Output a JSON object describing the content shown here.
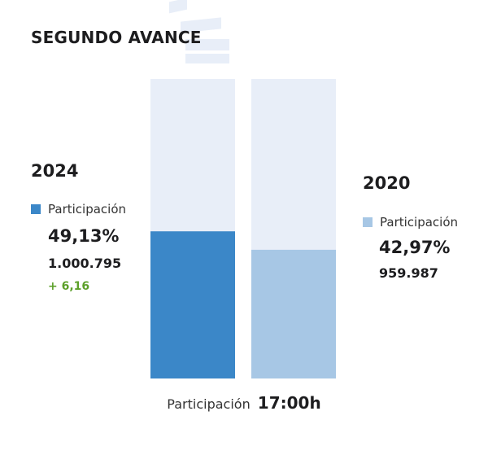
{
  "title": "SEGUNDO AVANCE",
  "colors": {
    "track": "#e8eef8",
    "bar_2024": "#3b87c8",
    "bar_2020": "#a7c7e5",
    "diff_positive": "#5da02a"
  },
  "chart_data": {
    "type": "bar",
    "categories": [
      "2024",
      "2020"
    ],
    "series": [
      {
        "name": "Participación",
        "values": [
          49.13,
          42.97
        ]
      }
    ],
    "ylim": [
      0,
      100
    ],
    "caption_label": "Participación",
    "caption_time": "17:00h"
  },
  "panels": {
    "left": {
      "year": "2024",
      "legend_label": "Participación",
      "percent": "49,13%",
      "votes": "1.000.795",
      "diff": "+ 6,16"
    },
    "right": {
      "year": "2020",
      "legend_label": "Participación",
      "percent": "42,97%",
      "votes": "959.987"
    }
  }
}
